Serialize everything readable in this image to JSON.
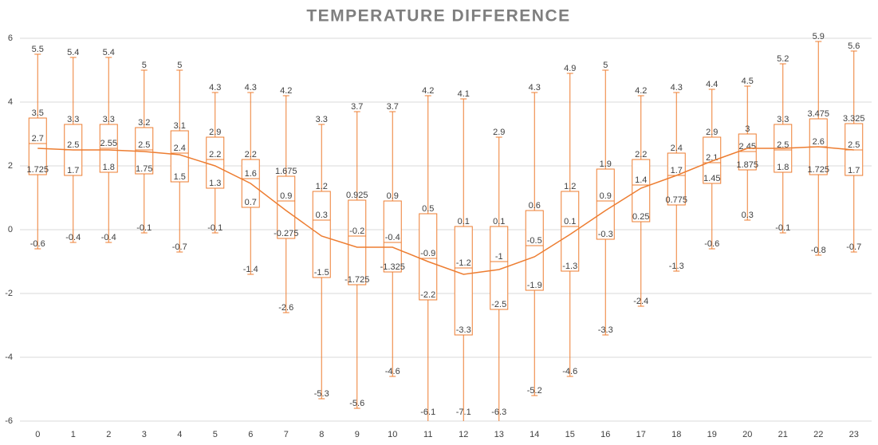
{
  "chart_data": {
    "type": "box",
    "title": "TEMPERATURE DIFFERENCE",
    "categories": [
      "0",
      "1",
      "2",
      "3",
      "4",
      "5",
      "6",
      "7",
      "8",
      "9",
      "10",
      "11",
      "12",
      "13",
      "14",
      "15",
      "16",
      "17",
      "18",
      "19",
      "20",
      "21",
      "22",
      "23"
    ],
    "max": [
      5.5,
      5.4,
      5.4,
      5,
      5,
      4.3,
      4.3,
      4.2,
      3.3,
      3.7,
      3.7,
      4.2,
      4.1,
      2.9,
      4.3,
      4.9,
      5,
      4.2,
      4.3,
      4.4,
      4.5,
      5.2,
      5.9,
      5.6
    ],
    "q3": [
      3.5,
      3.3,
      3.3,
      3.2,
      3.1,
      2.9,
      2.2,
      1.675,
      1.2,
      0.925,
      0.9,
      0.5,
      0.1,
      0.1,
      0.6,
      1.2,
      1.9,
      2.2,
      2.4,
      2.9,
      3,
      3.3,
      3.475,
      3.325
    ],
    "median": [
      2.7,
      2.5,
      2.55,
      2.5,
      2.4,
      2.2,
      1.6,
      0.9,
      0.3,
      -0.2,
      -0.4,
      -0.9,
      -1.2,
      -1,
      -0.5,
      0.1,
      0.9,
      1.4,
      1.7,
      2.1,
      2.45,
      2.5,
      2.6,
      2.5
    ],
    "q1": [
      1.725,
      1.7,
      1.8,
      1.75,
      1.5,
      1.3,
      0.7,
      -0.275,
      -1.5,
      -1.725,
      -1.325,
      -2.2,
      -3.3,
      -2.5,
      -1.9,
      -1.3,
      -0.3,
      0.25,
      0.775,
      1.45,
      1.875,
      1.8,
      1.725,
      1.7
    ],
    "min": [
      -0.6,
      -0.4,
      -0.4,
      -0.1,
      -0.7,
      -0.1,
      -1.4,
      -2.6,
      -5.3,
      -5.6,
      -4.6,
      -6.1,
      -7.1,
      -6.3,
      -5.2,
      -4.6,
      -3.3,
      -2.4,
      -1.3,
      -0.6,
      0.3,
      -0.1,
      -0.8,
      -0.7
    ],
    "mean": [
      2.55,
      2.5,
      2.5,
      2.45,
      2.35,
      2.0,
      1.45,
      0.6,
      -0.2,
      -0.55,
      -0.55,
      -1.0,
      -1.4,
      -1.25,
      -0.85,
      -0.15,
      0.6,
      1.3,
      1.7,
      2.15,
      2.55,
      2.55,
      2.6,
      2.5
    ],
    "color": "#ed7d31",
    "ylim": [
      -6,
      6
    ],
    "yticks": [
      -6,
      -4,
      -2,
      0,
      2,
      4,
      6
    ],
    "grid": true
  }
}
